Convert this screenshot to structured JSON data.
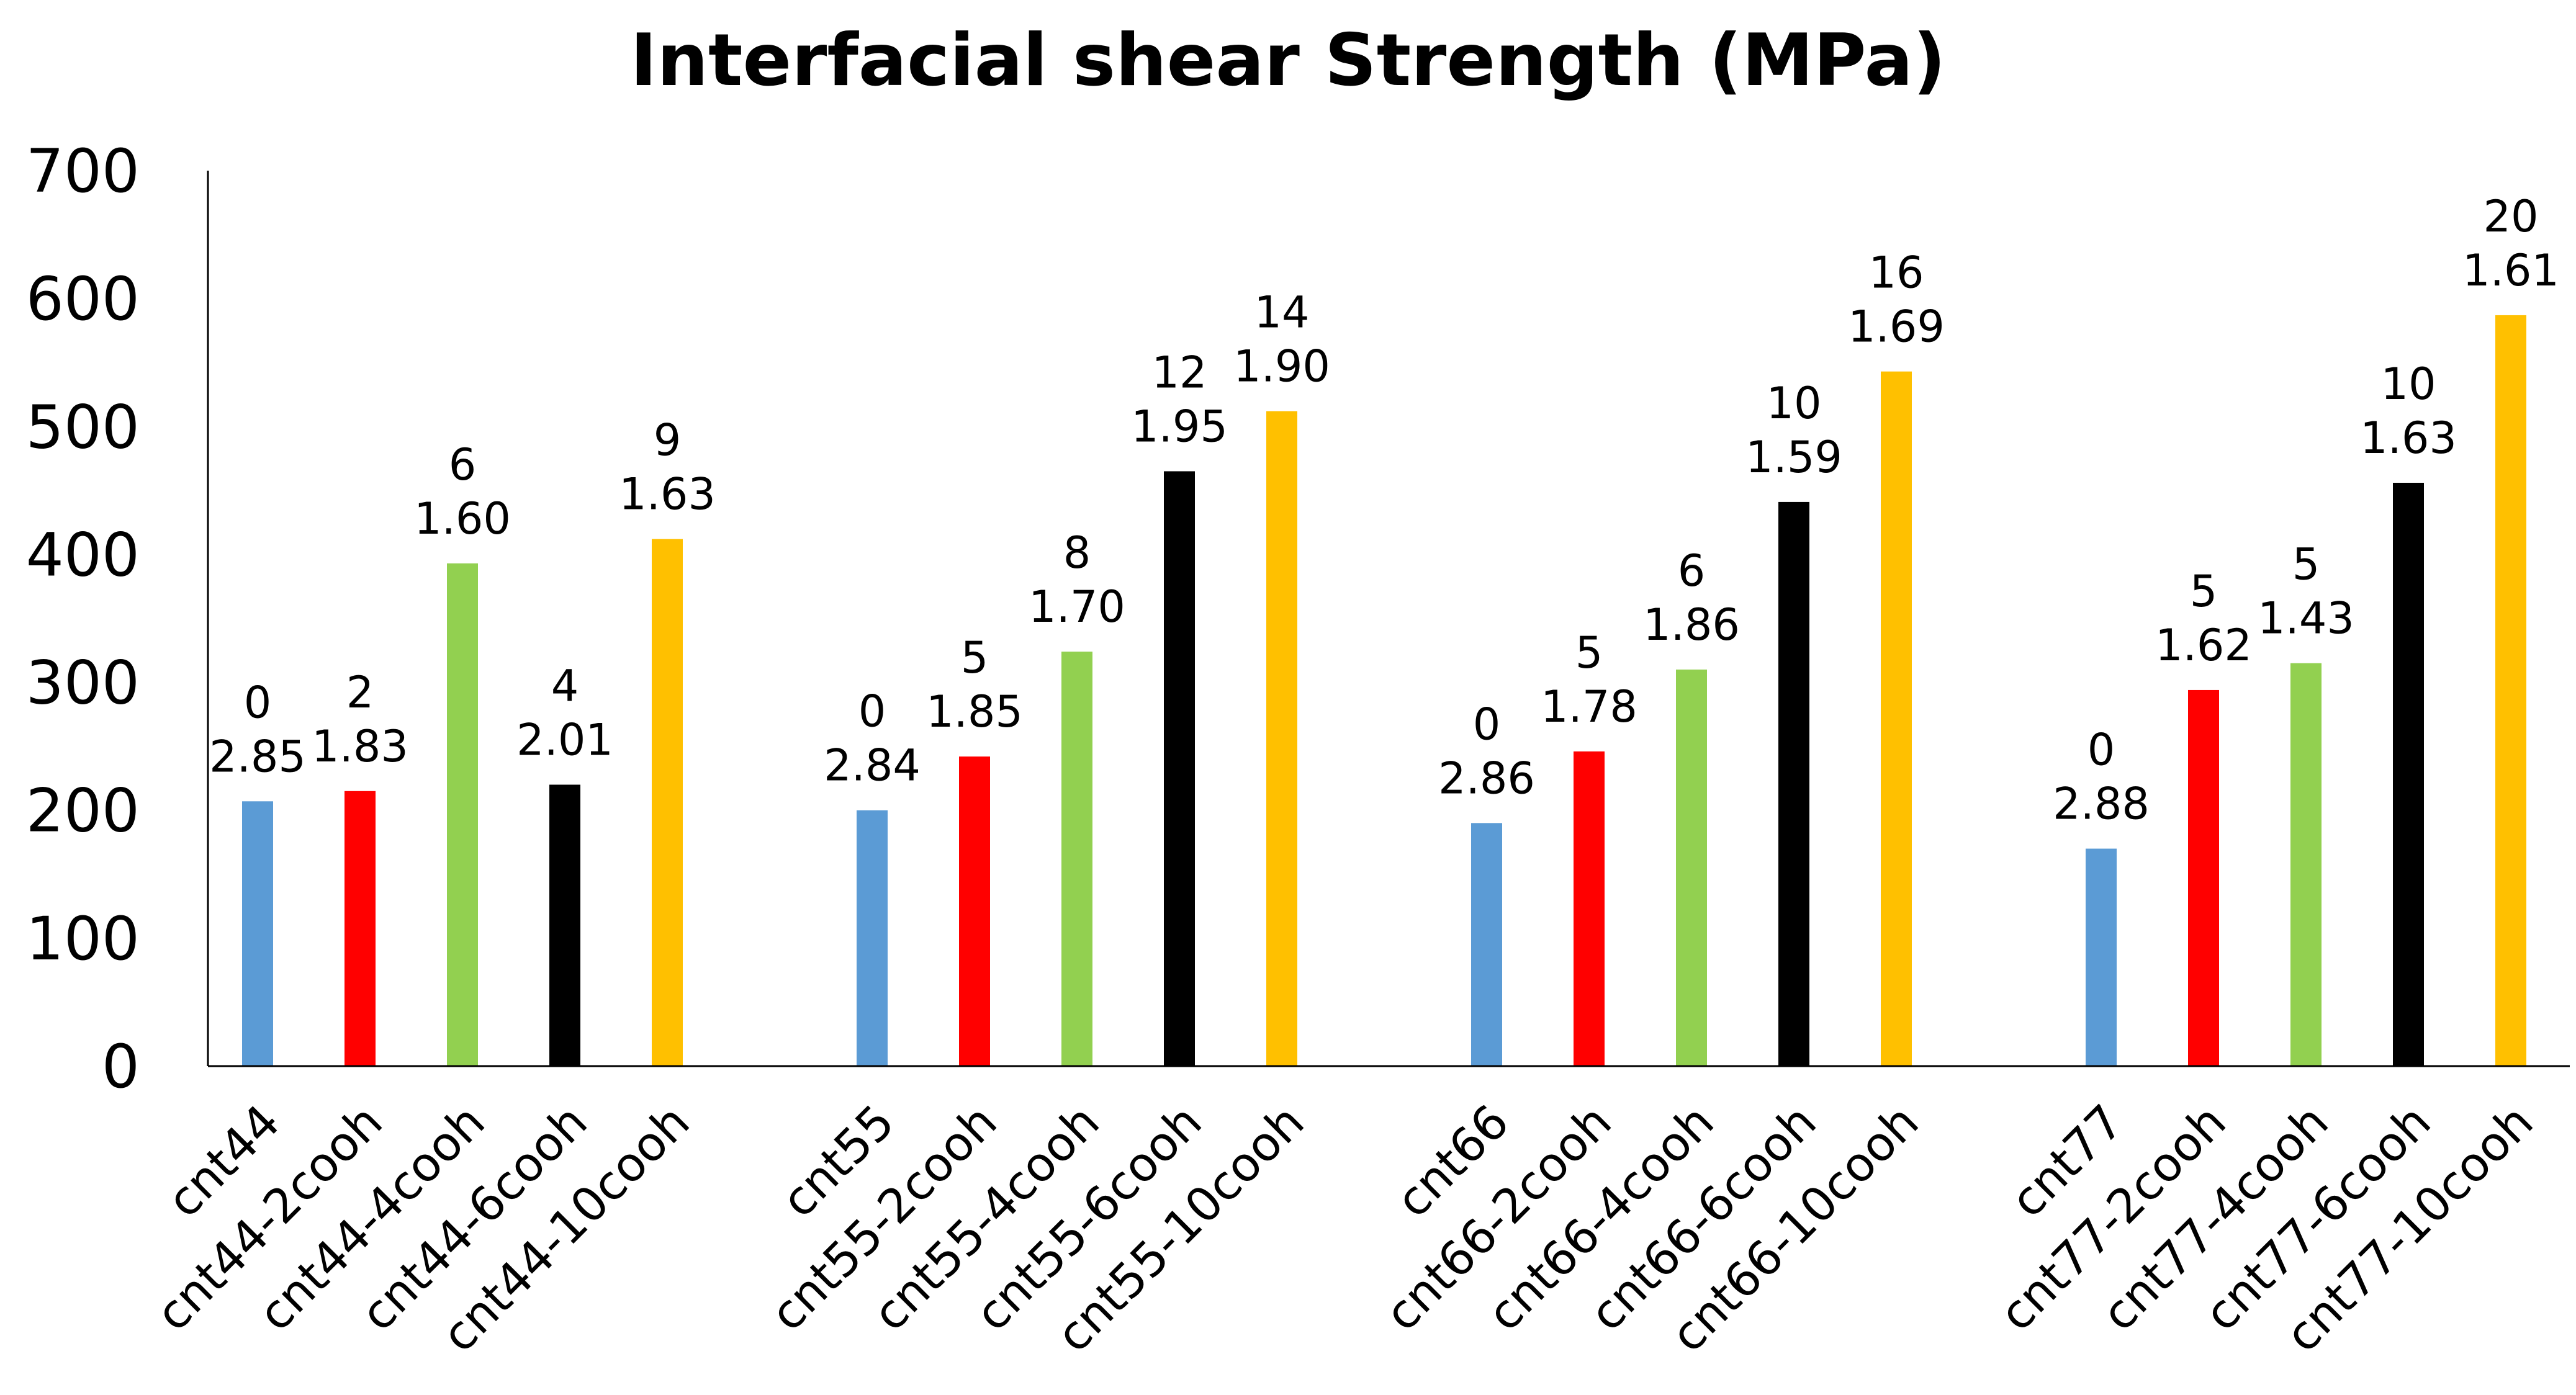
{
  "chart_data": {
    "type": "bar",
    "title": "Interfacial shear Strength (MPa)",
    "xlabel": "",
    "ylabel": "",
    "ylim": [
      0,
      700
    ],
    "yticks": [
      0,
      100,
      200,
      300,
      400,
      500,
      600,
      700
    ],
    "grid": false,
    "groups": [
      {
        "name": "cnt44",
        "bars": [
          {
            "category": "cnt44",
            "value": 207,
            "label_top": "0",
            "label_bottom": "2.85",
            "color": "#5B9BD5"
          },
          {
            "category": "cnt44-2cooh",
            "value": 215,
            "label_top": "2",
            "label_bottom": "1.83",
            "color": "#FF0000"
          },
          {
            "category": "cnt44-4cooh",
            "value": 393,
            "label_top": "6",
            "label_bottom": "1.60",
            "color": "#92D050"
          },
          {
            "category": "cnt44-6cooh",
            "value": 220,
            "label_top": "4",
            "label_bottom": "2.01",
            "color": "#000000"
          },
          {
            "category": "cnt44-10cooh",
            "value": 412,
            "label_top": "9",
            "label_bottom": "1.63",
            "color": "#FFC000"
          }
        ]
      },
      {
        "name": "cnt55",
        "bars": [
          {
            "category": "cnt55",
            "value": 200,
            "label_top": "0",
            "label_bottom": "2.84",
            "color": "#5B9BD5"
          },
          {
            "category": "cnt55-2cooh",
            "value": 242,
            "label_top": "5",
            "label_bottom": "1.85",
            "color": "#FF0000"
          },
          {
            "category": "cnt55-4cooh",
            "value": 324,
            "label_top": "8",
            "label_bottom": "1.70",
            "color": "#92D050"
          },
          {
            "category": "cnt55-6cooh",
            "value": 465,
            "label_top": "12",
            "label_bottom": "1.95",
            "color": "#000000"
          },
          {
            "category": "cnt55-10cooh",
            "value": 512,
            "label_top": "14",
            "label_bottom": "1.90",
            "color": "#FFC000"
          }
        ]
      },
      {
        "name": "cnt66",
        "bars": [
          {
            "category": "cnt66",
            "value": 190,
            "label_top": "0",
            "label_bottom": "2.86",
            "color": "#5B9BD5"
          },
          {
            "category": "cnt66-2cooh",
            "value": 246,
            "label_top": "5",
            "label_bottom": "1.78",
            "color": "#FF0000"
          },
          {
            "category": "cnt66-4cooh",
            "value": 310,
            "label_top": "6",
            "label_bottom": "1.86",
            "color": "#92D050"
          },
          {
            "category": "cnt66-6cooh",
            "value": 441,
            "label_top": "10",
            "label_bottom": "1.59",
            "color": "#000000"
          },
          {
            "category": "cnt66-10cooh",
            "value": 543,
            "label_top": "16",
            "label_bottom": "1.69",
            "color": "#FFC000"
          }
        ]
      },
      {
        "name": "cnt77",
        "bars": [
          {
            "category": "cnt77",
            "value": 170,
            "label_top": "0",
            "label_bottom": "2.88",
            "color": "#5B9BD5"
          },
          {
            "category": "cnt77-2cooh",
            "value": 294,
            "label_top": "5",
            "label_bottom": "1.62",
            "color": "#FF0000"
          },
          {
            "category": "cnt77-4cooh",
            "value": 315,
            "label_top": "5",
            "label_bottom": "1.43",
            "color": "#92D050"
          },
          {
            "category": "cnt77-6cooh",
            "value": 456,
            "label_top": "10",
            "label_bottom": "1.63",
            "color": "#000000"
          },
          {
            "category": "cnt77-10cooh",
            "value": 587,
            "label_top": "20",
            "label_bottom": "1.61",
            "color": "#FFC000"
          }
        ]
      }
    ]
  }
}
